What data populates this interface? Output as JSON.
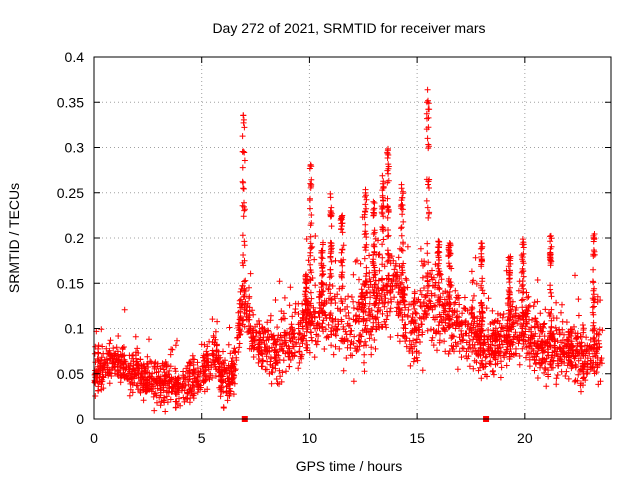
{
  "chart_data": {
    "type": "scatter",
    "title": "Day 272 of 2021, SRMTID for receiver mars",
    "xlabel": "GPS time / hours",
    "ylabel": "SRMTID / TECUs",
    "xlim": [
      0,
      24
    ],
    "ylim": [
      0,
      0.4
    ],
    "grid": true,
    "marker": "+",
    "color": "#ff0000",
    "x_ticks": [
      0,
      5,
      10,
      15,
      20
    ],
    "x_tick_labels": [
      "0",
      "5",
      "10",
      "15",
      "20"
    ],
    "y_ticks": [
      0,
      0.05,
      0.1,
      0.15,
      0.2,
      0.25,
      0.3,
      0.35,
      0.4
    ],
    "y_tick_labels": [
      "0",
      "0.05",
      "0.1",
      "0.15",
      "0.2",
      "0.25",
      "0.3",
      "0.35",
      "0.4"
    ],
    "zero_markers_x": [
      7.0,
      18.2
    ],
    "series": [
      {
        "name": "SRMTID",
        "trend": {
          "x": [
            0,
            0.5,
            1,
            1.5,
            2,
            2.5,
            3,
            3.5,
            4,
            4.5,
            5,
            5.3,
            5.7,
            6,
            6.5,
            6.8,
            7,
            7.2,
            7.5,
            8,
            8.5,
            9,
            9.5,
            10,
            10.5,
            11,
            11.5,
            12,
            12.5,
            13,
            13.5,
            14,
            14.5,
            15,
            15.5,
            16,
            16.5,
            17,
            17.5,
            18,
            18.5,
            19,
            19.5,
            20,
            20.5,
            21,
            21.5,
            22,
            22.5,
            23,
            23.5
          ],
          "y": [
            0.045,
            0.06,
            0.065,
            0.055,
            0.05,
            0.045,
            0.04,
            0.04,
            0.035,
            0.04,
            0.05,
            0.06,
            0.07,
            0.04,
            0.05,
            0.11,
            0.13,
            0.11,
            0.09,
            0.08,
            0.075,
            0.08,
            0.095,
            0.11,
            0.12,
            0.11,
            0.1,
            0.095,
            0.11,
            0.13,
            0.14,
            0.15,
            0.12,
            0.1,
            0.13,
            0.12,
            0.11,
            0.1,
            0.095,
            0.09,
            0.085,
            0.09,
            0.095,
            0.1,
            0.085,
            0.08,
            0.075,
            0.08,
            0.07,
            0.065,
            0.075
          ]
        },
        "spread": {
          "x": [
            0,
            5,
            6.5,
            9,
            10,
            12,
            13,
            15,
            16,
            18,
            24
          ],
          "y": [
            0.018,
            0.02,
            0.022,
            0.03,
            0.035,
            0.035,
            0.04,
            0.04,
            0.035,
            0.028,
            0.025
          ]
        },
        "point_count": 2600,
        "spikes": [
          {
            "x": 6.95,
            "peak": 0.345,
            "width": 0.12
          },
          {
            "x": 9.85,
            "peak": 0.16,
            "width": 0.1
          },
          {
            "x": 10.05,
            "peak": 0.292,
            "width": 0.08
          },
          {
            "x": 10.6,
            "peak": 0.2,
            "width": 0.1
          },
          {
            "x": 11.0,
            "peak": 0.257,
            "width": 0.08
          },
          {
            "x": 11.5,
            "peak": 0.225,
            "width": 0.1
          },
          {
            "x": 12.6,
            "peak": 0.255,
            "width": 0.1
          },
          {
            "x": 13.0,
            "peak": 0.25,
            "width": 0.08
          },
          {
            "x": 13.4,
            "peak": 0.27,
            "width": 0.1
          },
          {
            "x": 13.65,
            "peak": 0.3,
            "width": 0.08
          },
          {
            "x": 14.3,
            "peak": 0.26,
            "width": 0.12
          },
          {
            "x": 15.5,
            "peak": 0.37,
            "width": 0.12
          },
          {
            "x": 16.0,
            "peak": 0.2,
            "width": 0.1
          },
          {
            "x": 16.5,
            "peak": 0.195,
            "width": 0.1
          },
          {
            "x": 18.0,
            "peak": 0.195,
            "width": 0.08
          },
          {
            "x": 19.3,
            "peak": 0.18,
            "width": 0.1
          },
          {
            "x": 19.9,
            "peak": 0.2,
            "width": 0.1
          },
          {
            "x": 21.2,
            "peak": 0.205,
            "width": 0.08
          },
          {
            "x": 23.2,
            "peak": 0.205,
            "width": 0.1
          }
        ]
      }
    ]
  }
}
